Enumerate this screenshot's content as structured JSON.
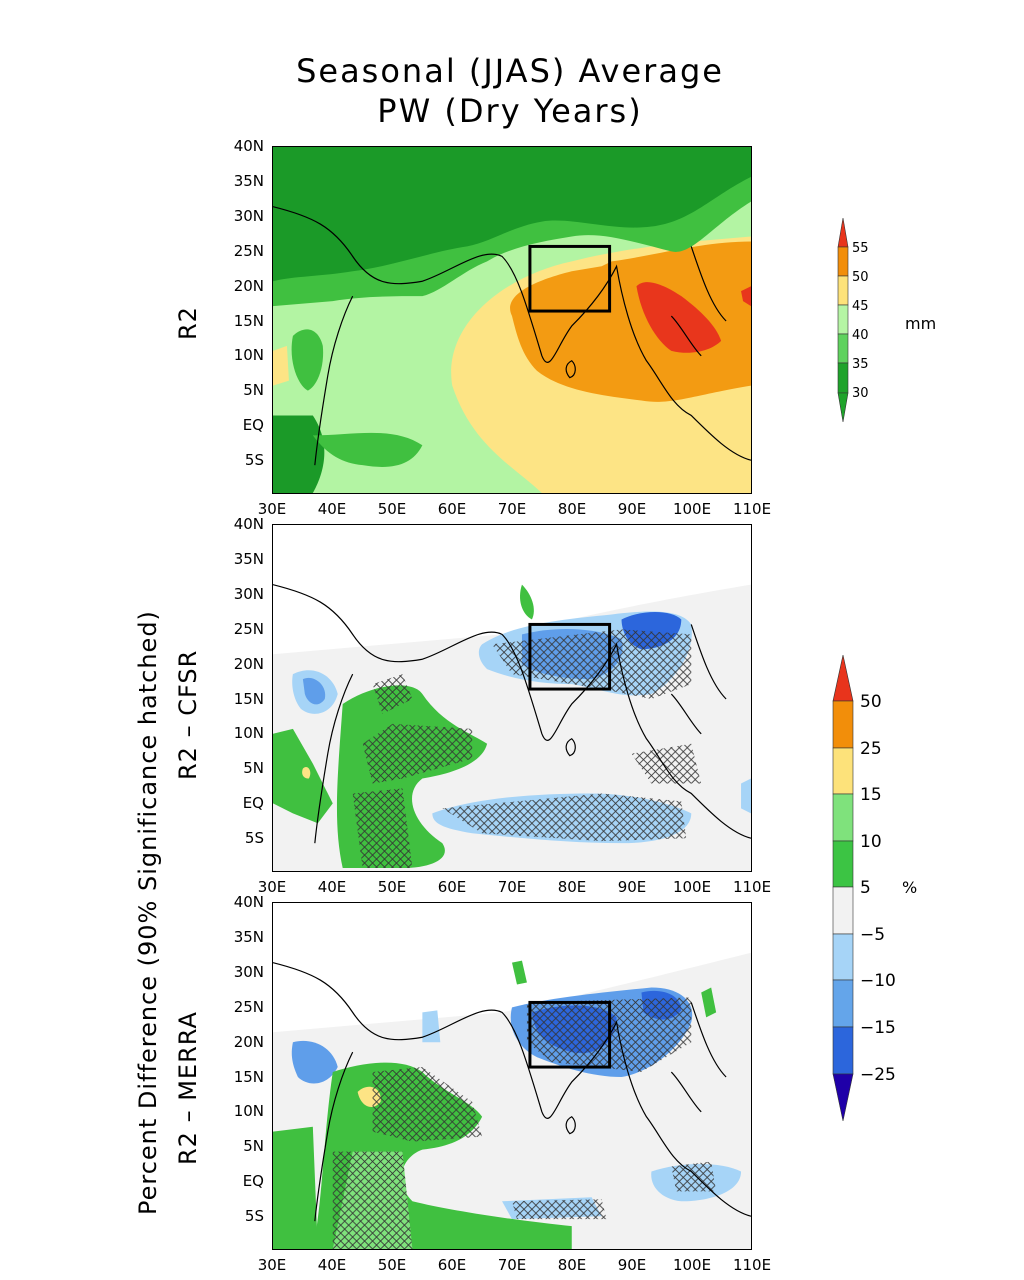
{
  "title_line1": "Seasonal (JJAS) Average",
  "title_line2": "PW (Dry Years)",
  "lat_labels": [
    "40N",
    "35N",
    "30N",
    "25N",
    "20N",
    "15N",
    "10N",
    "5N",
    "EQ",
    "5S"
  ],
  "lon_labels": [
    "30E",
    "40E",
    "50E",
    "60E",
    "70E",
    "80E",
    "90E",
    "100E",
    "110E"
  ],
  "panel_labels": {
    "top": "R2",
    "middle": "R2 – CFSR",
    "bottom": "R2 – MERRA",
    "shared": "Percent Difference (90% Significance hatched)"
  },
  "colorbar_top": {
    "unit": "mm",
    "labels": [
      "55",
      "50",
      "45",
      "40",
      "35",
      "30"
    ],
    "colors": [
      "#e8341c",
      "#f28e0a",
      "#fde27a",
      "#b5f5a4",
      "#5fd25e",
      "#1fa32b"
    ]
  },
  "colorbar_bottom": {
    "unit": "%",
    "labels": [
      "50",
      "25",
      "15",
      "10",
      "5",
      "−5",
      "−10",
      "−15",
      "−25"
    ],
    "colors": [
      "#e8341c",
      "#f28e0a",
      "#fde27a",
      "#7fe27c",
      "#3cc444",
      "#f2f2f2",
      "#a6d4f7",
      "#64a5ea",
      "#2c66dc",
      "#1330c8",
      "#1f00a8"
    ]
  },
  "map_colors": {
    "dark_green": "#1b9a28",
    "green": "#40c040",
    "light_green": "#b3f4a3",
    "yellow": "#fde485",
    "orange": "#f39b12",
    "red": "#e8361c",
    "gray": "#f2f2f2",
    "light_blue": "#a6d4f7",
    "blue": "#5f9eea",
    "dark_blue": "#2c66dc"
  },
  "box_region": {
    "lon": [
      73,
      86
    ],
    "lat": [
      16,
      26
    ]
  }
}
